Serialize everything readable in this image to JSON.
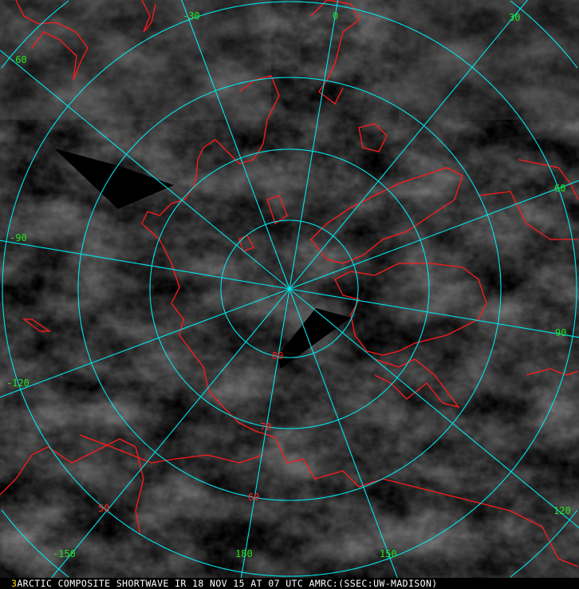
{
  "caption": {
    "frame_number": "3",
    "text": "ARCTIC COMPOSITE SHORTWAVE IR 18 NOV 15 AT 07 UTC AMRC:(SSEC:UW-MADISON)"
  },
  "longitude_labels": [
    "-30",
    "0",
    "30",
    "-60",
    "60",
    "-90",
    "90",
    "-120",
    "120",
    "-150",
    "180",
    "150"
  ],
  "latitude_labels": [
    "80",
    "70",
    "60",
    "50"
  ],
  "colors": {
    "grid": "#00e5ee",
    "coastline": "#ff1a1a",
    "longitude_label": "#22e022",
    "latitude_label": "#ff2020",
    "missing_data": "#000000"
  }
}
